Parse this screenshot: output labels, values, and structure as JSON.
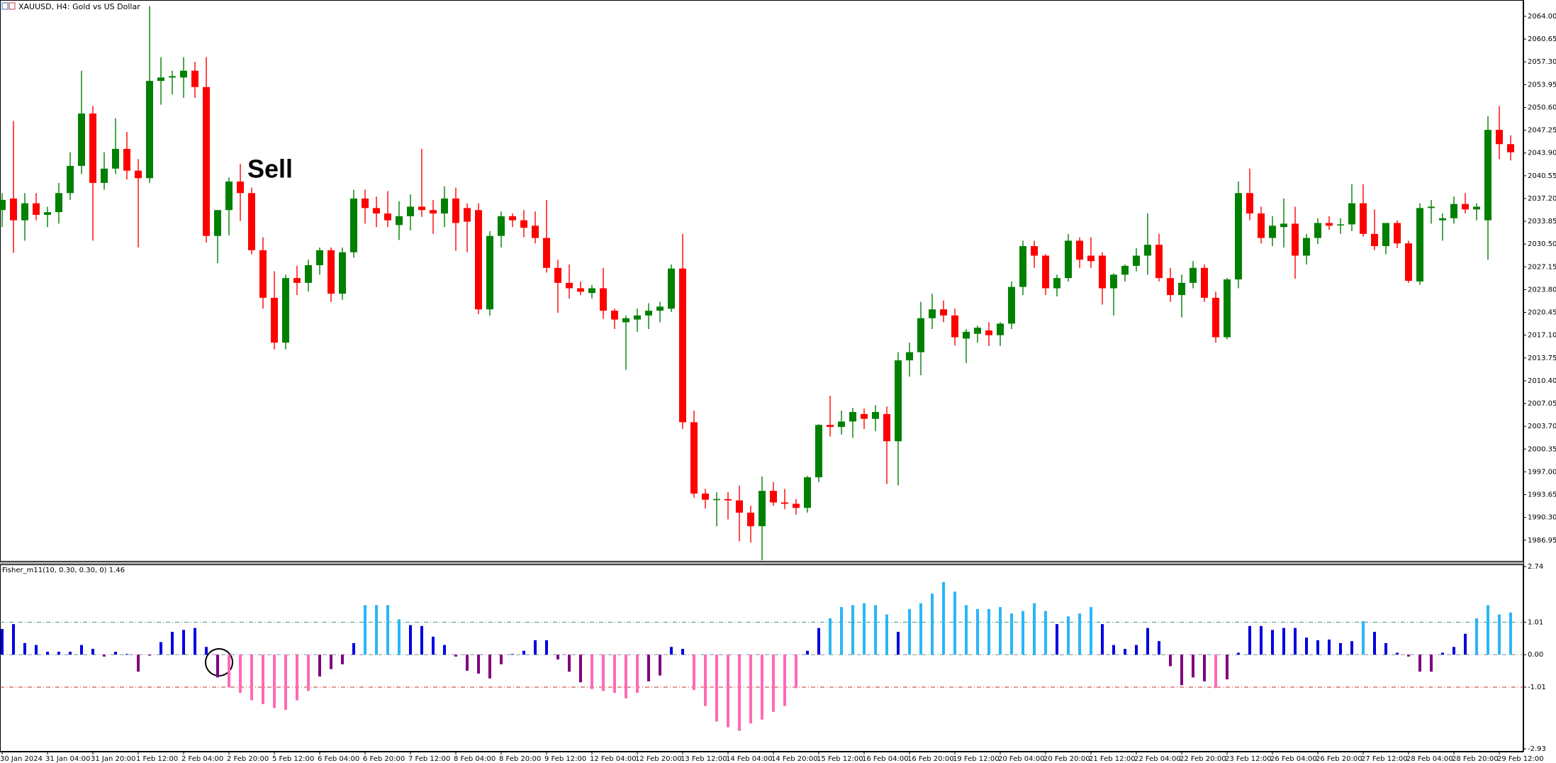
{
  "chart_data": [
    {
      "type": "candlestick",
      "title": "XAUUSD, H4:  Gold vs US Dollar",
      "annotation": "Sell",
      "categories": [
        "30 Jan 2024",
        null,
        null,
        null,
        "31 Jan 04:00",
        null,
        null,
        null,
        "31 Jan 20:00",
        null,
        null,
        null,
        "1 Feb 12:00",
        null,
        null,
        null,
        "2 Feb 04:00",
        null,
        null,
        null,
        "2 Feb 20:00",
        null,
        null,
        null,
        "5 Feb 12:00",
        null,
        null,
        null,
        "6 Feb 04:00",
        null,
        null,
        null,
        "6 Feb 20:00",
        null,
        null,
        null,
        "7 Feb 12:00",
        null,
        null,
        null,
        "8 Feb 04:00",
        null,
        null,
        null,
        "8 Feb 20:00",
        null,
        null,
        null,
        "9 Feb 12:00",
        null,
        null,
        null,
        "12 Feb 04:00",
        null,
        null,
        null,
        "12 Feb 20:00",
        null,
        null,
        null,
        "13 Feb 12:00",
        null,
        null,
        null,
        "14 Feb 04:00",
        null,
        null,
        null,
        "14 Feb 20:00",
        null,
        null,
        null,
        "15 Feb 12:00",
        null,
        null,
        null,
        "16 Feb 04:00",
        null,
        null,
        null,
        "16 Feb 20:00",
        null,
        null,
        null,
        "19 Feb 12:00",
        null,
        null,
        null,
        "20 Feb 04:00",
        null,
        null,
        null,
        "20 Feb 20:00",
        null,
        null,
        null,
        "21 Feb 12:00",
        null,
        null,
        null,
        "22 Feb 04:00",
        null,
        null,
        null,
        "22 Feb 20:00",
        null,
        null,
        null,
        "23 Feb 12:00",
        null,
        null,
        null,
        "26 Feb 04:00",
        null,
        null,
        null,
        "26 Feb 20:00",
        null,
        null,
        null,
        "27 Feb 12:00",
        null,
        null,
        null,
        "28 Feb 04:00",
        null,
        null,
        null,
        "28 Feb 20:00",
        null,
        null,
        null,
        "29 Feb 12:00",
        null
      ],
      "open": [
        2035.5,
        2037.2,
        2034,
        2036.5,
        2034.8,
        2035.2,
        2038,
        2042,
        2049.7,
        2039.5,
        2041.6,
        2044.5,
        2041.3,
        2040.2,
        2054.5,
        2055,
        2055,
        2056,
        2053.6,
        2031.7,
        2035.5,
        2039.7,
        2038,
        2029.6,
        2022.6,
        2016,
        2025.5,
        2024.8,
        2027.4,
        2029.6,
        2023.2,
        2029.3,
        2037.2,
        2035.8,
        2035,
        2033.3,
        2034.6,
        2036,
        2035.5,
        2035,
        2037.2,
        2035.8,
        2035.5,
        2020.9,
        2031.7,
        2034.6,
        2034,
        2033.2,
        2031.4,
        2027,
        2024.8,
        2024,
        2023.3,
        2024,
        2020.7,
        2019,
        2019.4,
        2020,
        2020.7,
        2021,
        2026.9,
        2004.3,
        1993.8,
        1993,
        1993,
        1992.8,
        1991,
        1989,
        1994.2,
        1992.5,
        1992.3,
        1991.7,
        1996.2,
        2003.9,
        2003.6,
        2004.4,
        2005.5,
        2004.8,
        2005.5,
        2001.5,
        2013.4,
        2014.6,
        2019.6,
        2020.9,
        2020,
        2016.6,
        2017.3,
        2017.8,
        2017.1,
        2018.8,
        2024.2,
        2030.2,
        2028.8,
        2024,
        2025.5,
        2031,
        2028.8,
        2028.8,
        2024,
        2026,
        2027.3,
        2028.8,
        2030.4,
        2025.5,
        2023,
        2024.8,
        2027,
        2022.6,
        2016.8,
        2025.3,
        2038,
        2035,
        2031.4,
        2033,
        2033.5,
        2028.8,
        2031.4,
        2033.6,
        2033.3,
        2033.4,
        2036.5,
        2032,
        2030.2,
        2033.6,
        2030.6,
        2025,
        2035.8,
        2034,
        2034.3,
        2036.4,
        2035.6,
        2034,
        2047.3,
        2045.2
      ],
      "high": [
        2038,
        2048.6,
        2038,
        2038,
        2036,
        2039.5,
        2044,
        2056,
        2050.8,
        2044,
        2049,
        2047,
        2043,
        2065.5,
        2058,
        2056,
        2058,
        2057.3,
        2058,
        2035.5,
        2040.3,
        2042.3,
        2038.8,
        2031.5,
        2026.5,
        2026,
        2027.3,
        2028.2,
        2030,
        2030,
        2030,
        2038.5,
        2038.5,
        2037.5,
        2038.3,
        2036.8,
        2037.8,
        2044.5,
        2037,
        2039,
        2038.8,
        2036.5,
        2036.5,
        2032.4,
        2035.3,
        2035,
        2035.5,
        2035.3,
        2037,
        2028.2,
        2027.5,
        2025,
        2024.5,
        2027,
        2021,
        2020,
        2021,
        2021.8,
        2022,
        2027.5,
        2032,
        2006,
        1994.5,
        1994,
        1994,
        1995,
        1992,
        1996.3,
        1995.5,
        1994.5,
        1993,
        1996.4,
        2004,
        2008.2,
        2006,
        2006.4,
        2006.3,
        2006.8,
        2006.6,
        2014.6,
        2016,
        2022,
        2023.2,
        2022.2,
        2021,
        2018,
        2018.5,
        2019,
        2019,
        2025,
        2031,
        2031,
        2029,
        2026,
        2032,
        2031.5,
        2031.5,
        2029.3,
        2026.2,
        2027.5,
        2029.9,
        2035,
        2032,
        2027,
        2026,
        2028,
        2027.5,
        2023.5,
        2025.5,
        2039.7,
        2041.6,
        2036,
        2034.6,
        2037.2,
        2036,
        2032,
        2034.3,
        2034.6,
        2034.3,
        2039.3,
        2039.3,
        2035.6,
        2033.6,
        2034,
        2031,
        2036.5,
        2037,
        2035,
        2037.5,
        2038,
        2036.5,
        2049.3,
        2050.8,
        2046.5
      ],
      "low": [
        2033,
        2029.2,
        2031,
        2034,
        2033,
        2033.5,
        2037,
        2040.8,
        2031,
        2038.5,
        2040.8,
        2040,
        2030,
        2039.5,
        2051,
        2052.5,
        2052,
        2052,
        2030.7,
        2027.7,
        2031.8,
        2033.9,
        2029,
        2021,
        2015,
        2015,
        2023,
        2023.5,
        2026,
        2022,
        2022.3,
        2028.5,
        2033.5,
        2033,
        2033,
        2031.1,
        2032.5,
        2034.5,
        2032,
        2033,
        2029.5,
        2029.3,
        2020.2,
        2020,
        2030,
        2033,
        2031.5,
        2030.6,
        2026.3,
        2020.4,
        2022.5,
        2023,
        2022.5,
        2019.5,
        2018,
        2012,
        2017.6,
        2018,
        2019,
        2020.5,
        2003.3,
        1993.2,
        1991.6,
        1989,
        1990,
        1986.8,
        1986.6,
        1984,
        1992,
        1991.5,
        1990.7,
        1991,
        1995.5,
        2002.2,
        2002.5,
        2002,
        2003.3,
        2003,
        1995.2,
        1995,
        2011,
        2011.2,
        2018,
        2019,
        2015.6,
        2013,
        2016,
        2015.5,
        2015.5,
        2018,
        2023,
        2027,
        2023,
        2022.8,
        2025,
        2027,
        2027,
        2021.6,
        2020,
        2025,
        2026.5,
        2026,
        2025,
        2022,
        2019.7,
        2024,
        2022,
        2016,
        2016.5,
        2024,
        2034,
        2030.6,
        2030.2,
        2030,
        2025.4,
        2027.5,
        2030.5,
        2032.6,
        2032,
        2032.4,
        2031.6,
        2029.6,
        2029,
        2029.9,
        2024.8,
        2024.5,
        2033.5,
        2031,
        2033.5,
        2035,
        2034,
        2028.2,
        2043,
        2042.8
      ],
      "close": [
        2037,
        2034,
        2036.5,
        2034.8,
        2035.2,
        2038,
        2042,
        2049.7,
        2039.5,
        2041.6,
        2044.5,
        2041.3,
        2040.2,
        2054.5,
        2055,
        2055.2,
        2056,
        2053.6,
        2031.7,
        2035.5,
        2039.7,
        2038,
        2029.6,
        2022.6,
        2016,
        2025.5,
        2024.8,
        2027.4,
        2029.6,
        2023.2,
        2029.3,
        2037.2,
        2035.8,
        2035,
        2034,
        2034.6,
        2036,
        2035.5,
        2035,
        2037.2,
        2033.6,
        2033.8,
        2020.9,
        2031.7,
        2034.6,
        2034,
        2032.9,
        2031.4,
        2027,
        2024.8,
        2024,
        2023.5,
        2024,
        2020.7,
        2019.4,
        2019.6,
        2020,
        2020.7,
        2021.3,
        2026.9,
        2004.3,
        1993.8,
        1992.9,
        1993,
        1992.8,
        1991,
        1989,
        1994.2,
        1992.5,
        1992.3,
        1991.7,
        1996.2,
        2003.9,
        2003.6,
        2004.4,
        2005.8,
        2004.8,
        2005.8,
        2001.5,
        2013.4,
        2014.6,
        2019.6,
        2020.9,
        2020,
        2016.8,
        2017.6,
        2018.2,
        2017.1,
        2018.8,
        2024.2,
        2030.2,
        2028.8,
        2024,
        2025.5,
        2031,
        2028.2,
        2028,
        2024,
        2026,
        2027.3,
        2028.8,
        2030.4,
        2025.5,
        2023,
        2024.8,
        2027,
        2022.6,
        2016.8,
        2025.3,
        2038,
        2035,
        2031.4,
        2033.2,
        2033.5,
        2028.8,
        2031.4,
        2033.6,
        2033.2,
        2033.4,
        2036.5,
        2032,
        2030.2,
        2033.6,
        2030.6,
        2025.1,
        2035.8,
        2036,
        2034.3,
        2036.4,
        2035.6,
        2036,
        2047.3,
        2045.2,
        2044
      ],
      "up_color": "#008000",
      "down_color": "#ff0000",
      "ylim": [
        1983.9,
        2066.4
      ],
      "yticks": [
        {
          "value": 2064,
          "label": "2064.00"
        },
        2060.65,
        {
          "value": 2057.3,
          "label": "2057.30"
        },
        2053.95,
        {
          "value": 2050.6,
          "label": "2050.60"
        },
        2047.25,
        {
          "value": 2043.9,
          "label": "2043.90"
        },
        2040.55,
        {
          "value": 2037.2,
          "label": "2037.20"
        },
        2033.85,
        {
          "value": 2030.5,
          "label": "2030.50"
        },
        2027.15,
        {
          "value": 2023.8,
          "label": "2023.80"
        },
        2020.45,
        {
          "value": 2017.1,
          "label": "2017.10"
        },
        2013.75,
        {
          "value": 2010.4,
          "label": "2010.40"
        },
        2007.05,
        {
          "value": 2003.7,
          "label": "2003.70"
        },
        2000.35,
        {
          "value": 1997,
          "label": "1997.00"
        },
        1993.65,
        {
          "value": 1990.3,
          "label": "1990.30"
        },
        1986.95
      ]
    },
    {
      "type": "bar",
      "title": "Fisher_m11(10, 0.30, 0.30, 0) 1.46",
      "values": [
        0.8,
        0.95,
        0.36,
        0.3,
        0.09,
        0.09,
        0.09,
        0.3,
        0.18,
        -0.06,
        0.09,
        0.02,
        -0.53,
        -0.03,
        0.39,
        0.71,
        0.77,
        0.83,
        0.24,
        -0.71,
        -1.02,
        -1.19,
        -1.42,
        -1.54,
        -1.66,
        -1.72,
        -1.42,
        -1.13,
        -0.68,
        -0.45,
        -0.3,
        0.36,
        1.54,
        1.54,
        1.54,
        1.1,
        0.92,
        0.89,
        0.56,
        0.3,
        -0.06,
        -0.5,
        -0.59,
        -0.74,
        -0.3,
        0.02,
        0.12,
        0.45,
        0.45,
        -0.15,
        -0.53,
        -0.86,
        -1.07,
        -1.13,
        -1.19,
        -1.36,
        -1.19,
        -0.83,
        -0.65,
        0.24,
        0.18,
        -1.1,
        -1.6,
        -2.08,
        -2.26,
        -2.37,
        -2.14,
        -2.02,
        -1.78,
        -1.6,
        -1.04,
        0.12,
        0.83,
        1.13,
        1.48,
        1.54,
        1.6,
        1.54,
        1.25,
        0.71,
        1.42,
        1.6,
        1.9,
        2.26,
        1.96,
        1.54,
        1.42,
        1.42,
        1.48,
        1.28,
        1.36,
        1.6,
        1.36,
        0.95,
        1.19,
        1.28,
        1.48,
        0.95,
        0.3,
        0.18,
        0.3,
        0.83,
        0.42,
        -0.36,
        -0.95,
        -0.71,
        -0.83,
        -1.04,
        -0.77,
        0.06,
        0.89,
        0.89,
        0.77,
        0.83,
        0.83,
        0.53,
        0.45,
        0.47,
        0.36,
        0.42,
        1.04,
        0.71,
        0.36,
        0.06,
        -0.06,
        -0.53,
        -0.53,
        0.06,
        0.24,
        0.65,
        1.13,
        1.54,
        1.25,
        1.31
      ],
      "colors": {
        "above_upper": "#29b6f6",
        "positive": "#0000e0",
        "negative": "#800080",
        "below_lower": "#ff69b4"
      },
      "levels": [
        {
          "value": 1.01,
          "color": "#3c9a78"
        },
        {
          "value": 0,
          "color": "#8090a0"
        },
        {
          "value": -1.01,
          "color": "#cc2a2a"
        }
      ],
      "ylim": [
        -2.93,
        2.74
      ],
      "yticks": [
        2.74,
        1.01,
        {
          "value": 0,
          "label": "0.00"
        },
        -1.01,
        -2.93
      ]
    }
  ]
}
